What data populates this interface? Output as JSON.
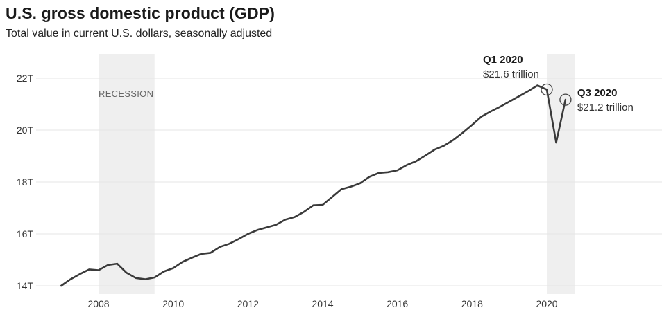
{
  "chart_data": {
    "type": "line",
    "title": "U.S. gross domestic product (GDP)",
    "subtitle": "Total value in current U.S. dollars, seasonally adjusted",
    "xlabel": "",
    "ylabel": "",
    "x_ticks": [
      "2008",
      "2010",
      "2012",
      "2014",
      "2016",
      "2018",
      "2020"
    ],
    "y_ticks": [
      "14T",
      "16T",
      "18T",
      "20T",
      "22T"
    ],
    "y_tick_values": [
      14,
      16,
      18,
      20,
      22
    ],
    "ylim": [
      13.8,
      22.5
    ],
    "xlim": [
      2006.5,
      2022.0
    ],
    "grid": "horizontal",
    "recession_bands": [
      {
        "start": 2008.0,
        "end": 2009.5,
        "label": "RECESSION"
      },
      {
        "start": 2020.0,
        "end": 2020.75,
        "label": ""
      }
    ],
    "series": [
      {
        "x": [
          2007.0,
          2007.25,
          2007.5,
          2007.75,
          2008.0,
          2008.25,
          2008.5,
          2008.75,
          2009.0,
          2009.25,
          2009.5,
          2009.75,
          2010.0,
          2010.25,
          2010.5,
          2010.75,
          2011.0,
          2011.25,
          2011.5,
          2011.75,
          2012.0,
          2012.25,
          2012.5,
          2012.75,
          2013.0,
          2013.25,
          2013.5,
          2013.75,
          2014.0,
          2014.25,
          2014.5,
          2014.75,
          2015.0,
          2015.25,
          2015.5,
          2015.75,
          2016.0,
          2016.25,
          2016.5,
          2016.75,
          2017.0,
          2017.25,
          2017.5,
          2017.75,
          2018.0,
          2018.25,
          2018.5,
          2018.75,
          2019.0,
          2019.25,
          2019.5,
          2019.75,
          2020.0,
          2020.25,
          2020.5
        ],
        "values": [
          14.0,
          14.25,
          14.45,
          14.63,
          14.6,
          14.8,
          14.85,
          14.5,
          14.3,
          14.25,
          14.32,
          14.55,
          14.68,
          14.92,
          15.08,
          15.23,
          15.27,
          15.5,
          15.62,
          15.8,
          16.0,
          16.15,
          16.25,
          16.35,
          16.55,
          16.65,
          16.85,
          17.1,
          17.12,
          17.42,
          17.72,
          17.82,
          17.95,
          18.2,
          18.35,
          18.38,
          18.45,
          18.65,
          18.8,
          19.02,
          19.25,
          19.4,
          19.62,
          19.9,
          20.2,
          20.52,
          20.72,
          20.9,
          21.1,
          21.3,
          21.5,
          21.72,
          21.56,
          19.52,
          21.17
        ]
      }
    ],
    "annotations": [
      {
        "title": "Q1 2020",
        "value": "$21.6 trillion",
        "x": 2020.0,
        "y": 21.56
      },
      {
        "title": "Q3 2020",
        "value": "$21.2 trillion",
        "x": 2020.5,
        "y": 21.17
      }
    ],
    "colors": {
      "line": "#3a3a3a",
      "recession": "#efefef",
      "grid": "#e6e6e6"
    }
  }
}
